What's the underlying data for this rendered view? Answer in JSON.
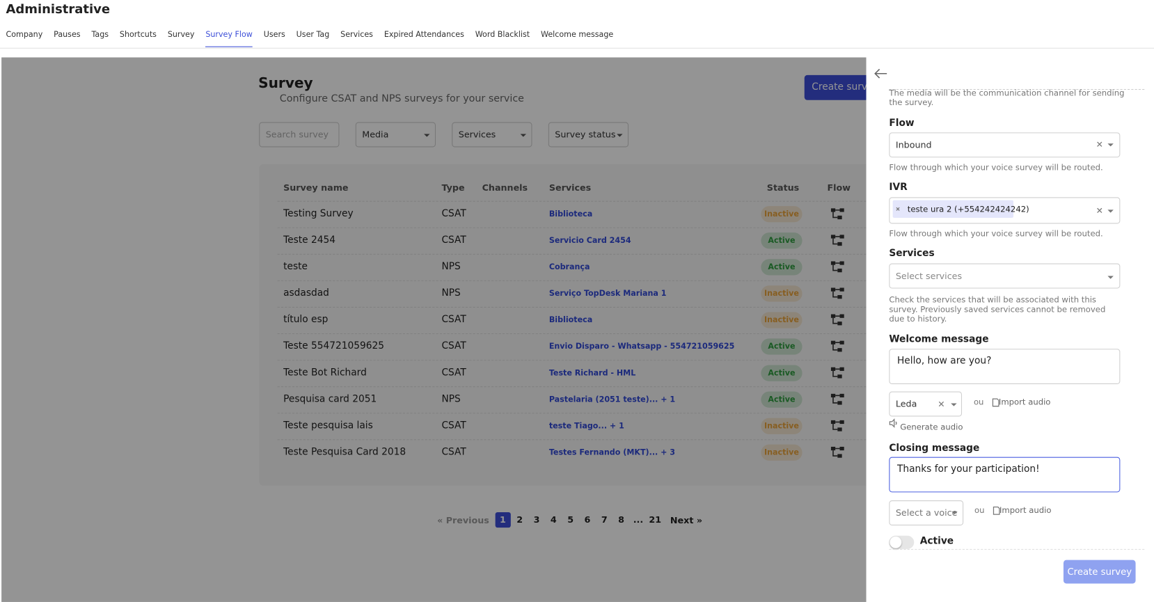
{
  "header": {
    "title": "Administrative",
    "tabs": [
      "Company",
      "Pauses",
      "Tags",
      "Shortcuts",
      "Survey",
      "Survey Flow",
      "Users",
      "User Tag",
      "Services",
      "Expired Attendances",
      "Word Blacklist",
      "Welcome message"
    ],
    "active_tab": 5
  },
  "survey_page": {
    "title": "Survey",
    "subtitle": "Configure CSAT and NPS surveys for your service",
    "create_button": "Create survey",
    "filters": {
      "search": "Search survey",
      "media": "Media",
      "services": "Services",
      "status": "Survey status"
    }
  },
  "table": {
    "columns": [
      "Survey name",
      "Type",
      "Channels",
      "Services",
      "Status",
      "Flow"
    ],
    "rows": [
      {
        "name": "Testing Survey",
        "type": "CSAT",
        "services": "Biblioteca",
        "status": "Inactive",
        "status_color": "#e8a23a"
      },
      {
        "name": "Teste 2454",
        "type": "CSAT",
        "services": "Servicio Card 2454",
        "status": "Active",
        "status_color": "#2e9b3e"
      },
      {
        "name": "teste",
        "type": "NPS",
        "services": "Cobrança",
        "status": "Active",
        "status_color": "#2e9b3e"
      },
      {
        "name": "asdasdad",
        "type": "NPS",
        "services": "Serviço TopDesk Mariana 1",
        "status": "Inactive",
        "status_color": "#e8a23a"
      },
      {
        "name": "título esp",
        "type": "CSAT",
        "services": "Biblioteca",
        "status": "Inactive",
        "status_color": "#e8a23a"
      },
      {
        "name": "Teste 554721059625",
        "type": "CSAT",
        "services": "Envio Disparo - Whatsapp - 554721059625",
        "status": "Active",
        "status_color": "#2e9b3e"
      },
      {
        "name": "Teste Bot Richard",
        "type": "CSAT",
        "services": "Teste Richard - HML",
        "status": "Active",
        "status_color": "#2e9b3e"
      },
      {
        "name": "Pesquisa card 2051",
        "type": "NPS",
        "services": "Pastelaria (2051 teste)... + 1",
        "status": "Active",
        "status_color": "#2e9b3e"
      },
      {
        "name": "Teste pesquisa lais",
        "type": "CSAT",
        "services": "teste Tiago... + 1",
        "status": "Inactive",
        "status_color": "#e8a23a"
      },
      {
        "name": "Teste Pesquisa Card 2018",
        "type": "CSAT",
        "services": "Testes Fernando (MKT)... + 3",
        "status": "Inactive",
        "status_color": "#e8a23a"
      }
    ]
  },
  "pagination": {
    "previous": "« Previous",
    "pages": [
      1,
      2,
      3,
      4,
      5,
      6,
      7,
      8,
      "...",
      21
    ],
    "current": 0,
    "next": "Next »"
  },
  "panel": {
    "intro": "The media will be the communication channel for sending the survey.",
    "flow": {
      "label": "Flow",
      "value": "Inbound",
      "help": "Flow through which your voice survey will be routed."
    },
    "ivr": {
      "label": "IVR",
      "tag": "teste ura 2 (+554242424242)",
      "help": "Flow through which your voice survey will be routed."
    },
    "services": {
      "label": "Services",
      "placeholder": "Select services",
      "help": "Check the services that will be associated with this survey. Previously saved services cannot be removed due to history."
    },
    "welcome": {
      "label": "Welcome message",
      "value": "Hello, how are you?",
      "voice": "Leda",
      "or": "ou",
      "import": "Import audio",
      "generate": "Generate audio"
    },
    "closing": {
      "label": "Closing message",
      "value": "Thanks for your participation!",
      "voice": "Select a voice",
      "or": "ou",
      "import": "Import audio"
    },
    "active": "Active",
    "submit": "Create survey"
  }
}
